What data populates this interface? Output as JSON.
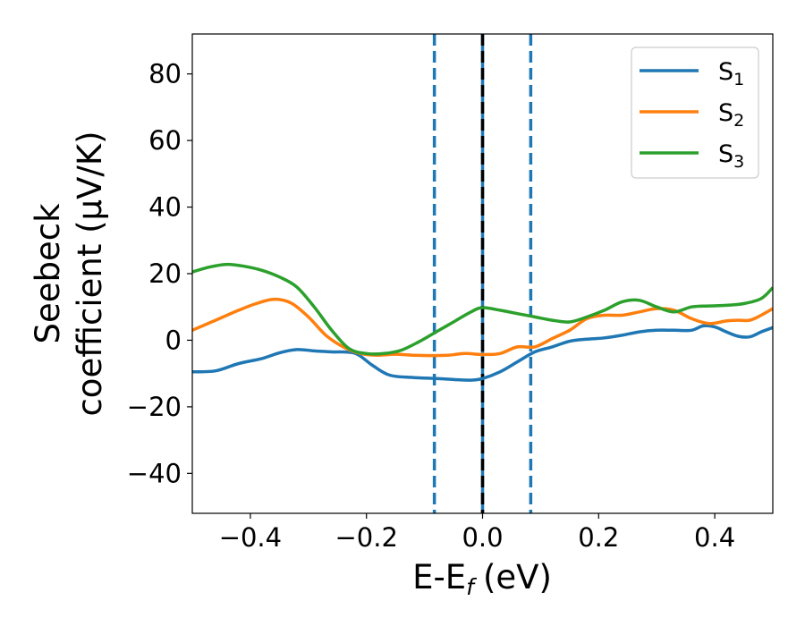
{
  "chart_data": {
    "type": "line",
    "xlabel": "E-E",
    "xlabel_sub": "f",
    "xlabel_unit": "(eV)",
    "ylabel_line1": "Seebeck",
    "ylabel_line2": "coefficient  (μV/K)",
    "xlim": [
      -0.5,
      0.5
    ],
    "ylim": [
      -52,
      92
    ],
    "xticks": [
      -0.4,
      -0.2,
      0.0,
      0.2,
      0.4
    ],
    "xtick_labels": [
      "−0.4",
      "−0.2",
      "0.0",
      "0.2",
      "0.4"
    ],
    "yticks": [
      -40,
      -20,
      0,
      20,
      40,
      60,
      80
    ],
    "ytick_labels": [
      "−40",
      "−20",
      "0",
      "20",
      "40",
      "60",
      "80"
    ],
    "grid": false,
    "legend_position": "top-right",
    "vlines": [
      {
        "x": -0.083,
        "style": "dashed",
        "color": "#1f77b4"
      },
      {
        "x": 0.0,
        "style": "solid",
        "color": "#1f77b4"
      },
      {
        "x": 0.0,
        "style": "dashed",
        "color": "#000000"
      },
      {
        "x": 0.083,
        "style": "dashed",
        "color": "#1f77b4"
      }
    ],
    "series": [
      {
        "name": "S",
        "sub": "1",
        "color": "#1f77b4",
        "x": [
          -0.5,
          -0.46,
          -0.42,
          -0.38,
          -0.35,
          -0.32,
          -0.29,
          -0.26,
          -0.22,
          -0.19,
          -0.16,
          -0.12,
          -0.08,
          -0.05,
          -0.02,
          0.0,
          0.03,
          0.06,
          0.09,
          0.12,
          0.15,
          0.18,
          0.21,
          0.24,
          0.27,
          0.3,
          0.33,
          0.36,
          0.38,
          0.4,
          0.42,
          0.44,
          0.46,
          0.48,
          0.5
        ],
        "values": [
          -9.5,
          -9.2,
          -7.0,
          -5.5,
          -3.8,
          -2.8,
          -3.2,
          -3.5,
          -3.9,
          -7.5,
          -10.5,
          -11.2,
          -11.5,
          -11.8,
          -12.0,
          -11.5,
          -9.5,
          -6.5,
          -3.5,
          -2.0,
          -0.3,
          0.3,
          0.7,
          1.5,
          2.5,
          3.0,
          3.0,
          3.0,
          4.3,
          4.0,
          2.5,
          1.2,
          1.0,
          2.5,
          3.8
        ]
      },
      {
        "name": "S",
        "sub": "2",
        "color": "#ff7f0e",
        "x": [
          -0.5,
          -0.46,
          -0.42,
          -0.39,
          -0.36,
          -0.33,
          -0.3,
          -0.27,
          -0.24,
          -0.21,
          -0.18,
          -0.15,
          -0.12,
          -0.09,
          -0.06,
          -0.03,
          0.0,
          0.03,
          0.06,
          0.09,
          0.12,
          0.15,
          0.18,
          0.21,
          0.24,
          0.27,
          0.3,
          0.33,
          0.36,
          0.39,
          0.42,
          0.44,
          0.46,
          0.48,
          0.5
        ],
        "values": [
          3.0,
          6.0,
          9.0,
          11.0,
          12.3,
          11.2,
          7.0,
          1.5,
          -2.0,
          -4.0,
          -4.5,
          -4.2,
          -4.5,
          -4.6,
          -4.5,
          -4.0,
          -4.3,
          -4.0,
          -2.0,
          -2.0,
          0.5,
          3.0,
          6.5,
          7.5,
          7.5,
          8.5,
          9.5,
          9.0,
          6.5,
          5.0,
          5.8,
          6.0,
          6.0,
          7.5,
          9.5
        ]
      },
      {
        "name": "S",
        "sub": "3",
        "color": "#2ca02c",
        "x": [
          -0.5,
          -0.47,
          -0.44,
          -0.41,
          -0.38,
          -0.35,
          -0.32,
          -0.29,
          -0.26,
          -0.23,
          -0.2,
          -0.17,
          -0.14,
          -0.11,
          -0.08,
          -0.05,
          -0.02,
          0.0,
          0.03,
          0.06,
          0.09,
          0.12,
          0.15,
          0.18,
          0.21,
          0.24,
          0.27,
          0.3,
          0.33,
          0.36,
          0.39,
          0.42,
          0.45,
          0.48,
          0.5
        ],
        "values": [
          20.5,
          22.0,
          22.8,
          22.2,
          21.0,
          19.0,
          16.0,
          10.0,
          3.0,
          -2.5,
          -4.0,
          -4.0,
          -3.0,
          -0.5,
          2.5,
          5.5,
          8.5,
          9.8,
          9.0,
          8.0,
          7.0,
          6.0,
          5.5,
          7.0,
          9.0,
          11.5,
          12.0,
          10.0,
          8.5,
          10.0,
          10.3,
          10.5,
          11.0,
          12.5,
          15.8
        ]
      }
    ]
  }
}
